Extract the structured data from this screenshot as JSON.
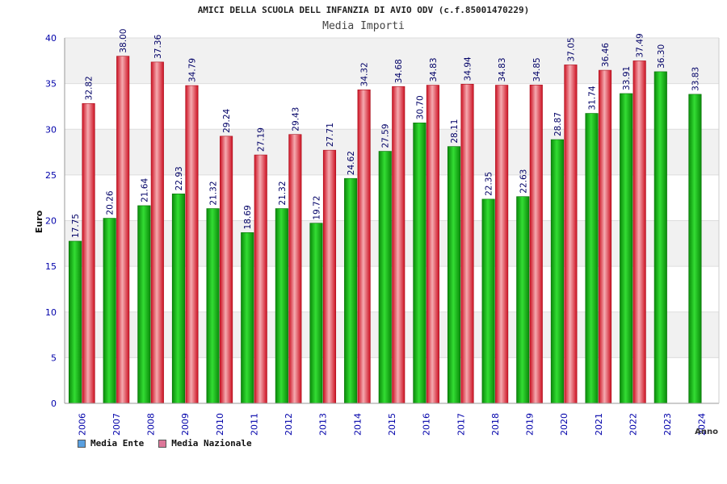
{
  "chart_data": {
    "type": "bar",
    "title": "AMICI DELLA SCUOLA DELL INFANZIA DI AVIO ODV (c.f.85001470229)",
    "subtitle": "Media Importi",
    "xlabel": "Anno",
    "ylabel": "Euro",
    "ylim": [
      0,
      40
    ],
    "yticks": [
      0,
      5,
      10,
      15,
      20,
      25,
      30,
      35,
      40
    ],
    "grid": true,
    "legend_position": "bottom-left",
    "categories": [
      "2006",
      "2007",
      "2008",
      "2009",
      "2010",
      "2011",
      "2012",
      "2013",
      "2014",
      "2015",
      "2016",
      "2017",
      "2018",
      "2019",
      "2020",
      "2021",
      "2022",
      "2023",
      "2024"
    ],
    "series": [
      {
        "name": "Media Ente",
        "color": "#22bb22",
        "legend_color": "#5aa0e0",
        "values": [
          17.75,
          20.26,
          21.64,
          22.93,
          21.32,
          18.69,
          21.32,
          19.72,
          24.62,
          27.59,
          30.7,
          28.11,
          22.35,
          22.63,
          28.87,
          31.74,
          33.91,
          36.3,
          33.83
        ],
        "labels": [
          "17.75",
          "20.26",
          "21.64",
          "22.93",
          "21.32",
          "18.69",
          "21.32",
          "19.72",
          "24.62",
          "27.59",
          "30.70",
          "28.11",
          "22.35",
          "22.63",
          "28.87",
          "31.74",
          "33.91",
          "36.30",
          "33.83"
        ]
      },
      {
        "name": "Media Nazionale",
        "color": "#ee3344",
        "legend_color": "#dd7799",
        "values": [
          32.82,
          38.0,
          37.36,
          34.79,
          29.24,
          27.19,
          29.43,
          27.71,
          34.32,
          34.68,
          34.83,
          34.94,
          34.83,
          34.85,
          37.05,
          36.46,
          37.49,
          null,
          null
        ],
        "labels": [
          "32.82",
          "38.00",
          "37.36",
          "34.79",
          "29.24",
          "27.19",
          "29.43",
          "27.71",
          "34.32",
          "34.68",
          "34.83",
          "34.94",
          "34.83",
          "34.85",
          "37.05",
          "36.46",
          "37.49",
          "",
          ""
        ]
      }
    ]
  }
}
